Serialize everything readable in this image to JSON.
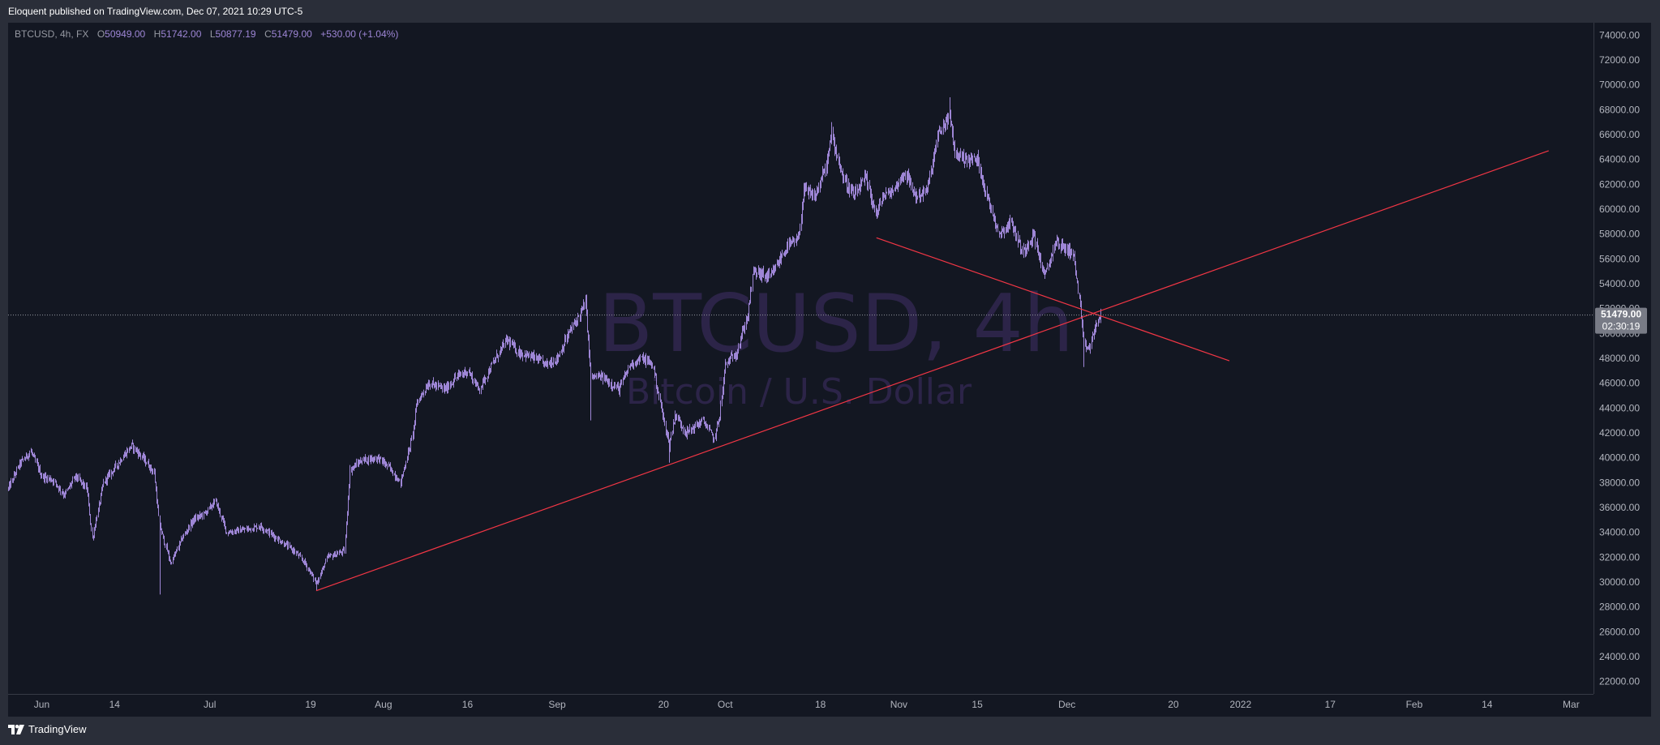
{
  "header": {
    "published": "Eloquent published on TradingView.com, Dec 07, 2021 10:29 UTC-5"
  },
  "symbol_bar": {
    "symbol": "BTCUSD, 4h, FX",
    "open_label": "O",
    "open": "50949.00",
    "high_label": "H",
    "high": "51742.00",
    "low_label": "L",
    "low": "50877.19",
    "close_label": "C",
    "close": "51479.00",
    "change": "+530.00 (+1.04%)"
  },
  "watermark": {
    "title": "BTCUSD, 4h",
    "subtitle": "Bitcoin / U.S. Dollar"
  },
  "price_tag": {
    "price": "51479.00",
    "countdown": "02:30:19"
  },
  "footer": {
    "brand": "TradingView"
  },
  "colors": {
    "background": "#131722",
    "frame": "#2a2e39",
    "candle": "#9e86d6",
    "trendline": "#f23645",
    "watermark": "#2c2448",
    "price_tag": "#787b86"
  },
  "chart_data": {
    "type": "candlestick",
    "series_name": "BTCUSD",
    "timeframe": "4h",
    "y_axis_ticks": [
      "74000.00",
      "72000.00",
      "70000.00",
      "68000.00",
      "66000.00",
      "64000.00",
      "62000.00",
      "60000.00",
      "58000.00",
      "56000.00",
      "54000.00",
      "52000.00",
      "50000.00",
      "48000.00",
      "46000.00",
      "44000.00",
      "42000.00",
      "40000.00",
      "38000.00",
      "36000.00",
      "34000.00",
      "32000.00",
      "30000.00",
      "28000.00",
      "26000.00",
      "24000.00",
      "22000.00"
    ],
    "y_axis_values": [
      74000,
      72000,
      70000,
      68000,
      66000,
      64000,
      62000,
      60000,
      58000,
      56000,
      54000,
      52000,
      50000,
      48000,
      46000,
      44000,
      42000,
      40000,
      38000,
      36000,
      34000,
      32000,
      30000,
      28000,
      26000,
      24000,
      22000
    ],
    "ylim": [
      21000,
      75000
    ],
    "x_axis_ticks": [
      {
        "label": "Jun",
        "date": "2021-06-01"
      },
      {
        "label": "14",
        "date": "2021-06-14"
      },
      {
        "label": "Jul",
        "date": "2021-07-01"
      },
      {
        "label": "19",
        "date": "2021-07-19"
      },
      {
        "label": "Aug",
        "date": "2021-08-01"
      },
      {
        "label": "16",
        "date": "2021-08-16"
      },
      {
        "label": "Sep",
        "date": "2021-09-01"
      },
      {
        "label": "20",
        "date": "2021-09-20"
      },
      {
        "label": "Oct",
        "date": "2021-10-01"
      },
      {
        "label": "18",
        "date": "2021-10-18"
      },
      {
        "label": "Nov",
        "date": "2021-11-01"
      },
      {
        "label": "15",
        "date": "2021-11-15"
      },
      {
        "label": "Dec",
        "date": "2021-12-01"
      },
      {
        "label": "20",
        "date": "2021-12-20"
      },
      {
        "label": "2022",
        "date": "2022-01-01"
      },
      {
        "label": "17",
        "date": "2022-01-17"
      },
      {
        "label": "Feb",
        "date": "2022-02-01"
      },
      {
        "label": "14",
        "date": "2022-02-14"
      },
      {
        "label": "Mar",
        "date": "2022-03-01"
      }
    ],
    "xlim": [
      "2021-05-26",
      "2022-03-05"
    ],
    "price_path": [
      [
        "2021-05-26",
        37500
      ],
      [
        "2021-05-28",
        39500
      ],
      [
        "2021-05-30",
        40500
      ],
      [
        "2021-06-01",
        38500
      ],
      [
        "2021-06-03",
        38200
      ],
      [
        "2021-06-05",
        37000
      ],
      [
        "2021-06-07",
        38500
      ],
      [
        "2021-06-09",
        37500
      ],
      [
        "2021-06-10",
        33500
      ],
      [
        "2021-06-12",
        38000
      ],
      [
        "2021-06-15",
        39800
      ],
      [
        "2021-06-17",
        41000
      ],
      [
        "2021-06-19",
        40000
      ],
      [
        "2021-06-21",
        38800
      ],
      [
        "2021-06-22",
        34500
      ],
      [
        "2021-06-24",
        31500
      ],
      [
        "2021-06-26",
        33500
      ],
      [
        "2021-06-28",
        35000
      ],
      [
        "2021-06-30",
        35500
      ],
      [
        "2021-07-02",
        36500
      ],
      [
        "2021-07-04",
        34000
      ],
      [
        "2021-07-07",
        34200
      ],
      [
        "2021-07-10",
        34500
      ],
      [
        "2021-07-13",
        33500
      ],
      [
        "2021-07-16",
        32500
      ],
      [
        "2021-07-18",
        31500
      ],
      [
        "2021-07-20",
        29900
      ],
      [
        "2021-07-22",
        32000
      ],
      [
        "2021-07-25",
        32500
      ],
      [
        "2021-07-26",
        39000
      ],
      [
        "2021-07-28",
        39800
      ],
      [
        "2021-07-31",
        40000
      ],
      [
        "2021-08-02",
        39200
      ],
      [
        "2021-08-04",
        38000
      ],
      [
        "2021-08-06",
        41500
      ],
      [
        "2021-08-07",
        44500
      ],
      [
        "2021-08-09",
        46000
      ],
      [
        "2021-08-12",
        45500
      ],
      [
        "2021-08-14",
        46500
      ],
      [
        "2021-08-16",
        47000
      ],
      [
        "2021-08-18",
        45500
      ],
      [
        "2021-08-21",
        48000
      ],
      [
        "2021-08-23",
        49500
      ],
      [
        "2021-08-25",
        48500
      ],
      [
        "2021-08-28",
        48000
      ],
      [
        "2021-08-30",
        47500
      ],
      [
        "2021-09-01",
        48000
      ],
      [
        "2021-09-03",
        50000
      ],
      [
        "2021-09-05",
        51500
      ],
      [
        "2021-09-06",
        52500
      ],
      [
        "2021-09-07",
        46500
      ],
      [
        "2021-09-09",
        46500
      ],
      [
        "2021-09-12",
        45500
      ],
      [
        "2021-09-14",
        47500
      ],
      [
        "2021-09-16",
        48000
      ],
      [
        "2021-09-18",
        47500
      ],
      [
        "2021-09-20",
        43000
      ],
      [
        "2021-09-21",
        41000
      ],
      [
        "2021-09-22",
        43500
      ],
      [
        "2021-09-24",
        42000
      ],
      [
        "2021-09-27",
        43000
      ],
      [
        "2021-09-29",
        41500
      ],
      [
        "2021-09-30",
        43500
      ],
      [
        "2021-10-01",
        47500
      ],
      [
        "2021-10-03",
        48500
      ],
      [
        "2021-10-05",
        51500
      ],
      [
        "2021-10-06",
        55000
      ],
      [
        "2021-10-09",
        54500
      ],
      [
        "2021-10-12",
        57000
      ],
      [
        "2021-10-14",
        57500
      ],
      [
        "2021-10-15",
        61500
      ],
      [
        "2021-10-17",
        61000
      ],
      [
        "2021-10-19",
        63500
      ],
      [
        "2021-10-20",
        66000
      ],
      [
        "2021-10-22",
        62500
      ],
      [
        "2021-10-24",
        61000
      ],
      [
        "2021-10-26",
        62500
      ],
      [
        "2021-10-28",
        59500
      ],
      [
        "2021-10-29",
        61000
      ],
      [
        "2021-10-31",
        61500
      ],
      [
        "2021-11-02",
        63000
      ],
      [
        "2021-11-04",
        61000
      ],
      [
        "2021-11-06",
        61500
      ],
      [
        "2021-11-08",
        66000
      ],
      [
        "2021-11-10",
        67500
      ],
      [
        "2021-11-11",
        64500
      ],
      [
        "2021-11-13",
        64000
      ],
      [
        "2021-11-15",
        64000
      ],
      [
        "2021-11-17",
        60500
      ],
      [
        "2021-11-19",
        58000
      ],
      [
        "2021-11-21",
        59000
      ],
      [
        "2021-11-23",
        56500
      ],
      [
        "2021-11-25",
        58000
      ],
      [
        "2021-11-27",
        54500
      ],
      [
        "2021-11-29",
        57500
      ],
      [
        "2021-11-30",
        57000
      ],
      [
        "2021-12-02",
        56500
      ],
      [
        "2021-12-03",
        53500
      ],
      [
        "2021-12-04",
        49000
      ],
      [
        "2021-12-05",
        48800
      ],
      [
        "2021-12-06",
        50500
      ],
      [
        "2021-12-07",
        51479
      ]
    ],
    "extremes": [
      [
        "2021-06-22",
        29000
      ],
      [
        "2021-07-20",
        29300
      ],
      [
        "2021-09-07",
        43000
      ],
      [
        "2021-09-21",
        39600
      ],
      [
        "2021-10-20",
        67000
      ],
      [
        "2021-11-10",
        69000
      ],
      [
        "2021-12-04",
        47300
      ]
    ],
    "trendlines": [
      {
        "start": [
          "2021-07-20",
          29300
        ],
        "end": [
          "2022-02-25",
          64700
        ]
      },
      {
        "start": [
          "2021-10-28",
          57700
        ],
        "end": [
          "2021-12-30",
          47800
        ]
      }
    ],
    "last_price": 51479
  }
}
